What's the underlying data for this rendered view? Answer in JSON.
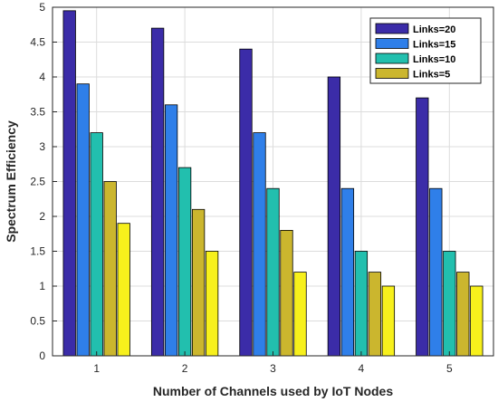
{
  "chart_data": {
    "type": "bar",
    "title": "",
    "xlabel": "Number of Channels used by IoT Nodes",
    "ylabel": "Spectrum Efficiency",
    "categories": [
      "1",
      "2",
      "3",
      "4",
      "5"
    ],
    "ylim": [
      0,
      5
    ],
    "yticks": [
      "0",
      "0.5",
      "1",
      "1.5",
      "2",
      "2.5",
      "3",
      "3.5",
      "4",
      "4.5",
      "5"
    ],
    "grid": true,
    "legend_position": "top-right",
    "series": [
      {
        "name": "Links=20",
        "color": "#3b2ca8",
        "values": [
          4.95,
          4.7,
          4.4,
          4.0,
          3.7
        ]
      },
      {
        "name": "Links=15",
        "color": "#2f7fe9",
        "values": [
          3.9,
          3.6,
          3.2,
          2.4,
          2.4
        ]
      },
      {
        "name": "Links=10",
        "color": "#22bfae",
        "values": [
          3.2,
          2.7,
          2.4,
          1.5,
          1.5
        ]
      },
      {
        "name": "Links=5",
        "color": "#cbb62e",
        "values": [
          2.5,
          2.1,
          1.8,
          1.2,
          1.2
        ]
      },
      {
        "name": "",
        "color": "#f7f01c",
        "values": [
          1.9,
          1.5,
          1.2,
          1.0,
          1.0
        ]
      }
    ]
  }
}
